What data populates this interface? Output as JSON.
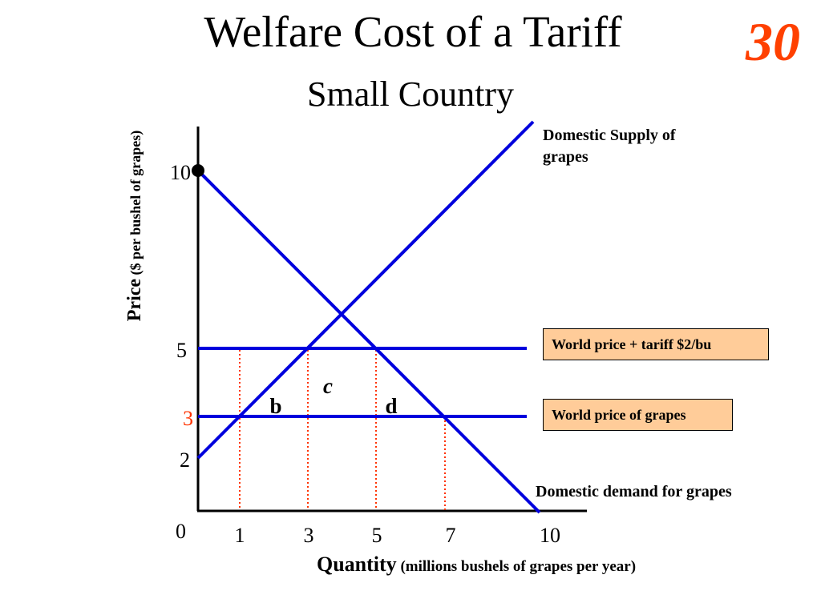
{
  "slide": {
    "title": "Welfare Cost of a Tariff",
    "subtitle": "Small Country",
    "number": "30",
    "number_color": "#ff4000"
  },
  "axes": {
    "y_label_main": "Price",
    "y_label_unit": " ($ per bushel of  grapes)",
    "x_label_main": "Quantity",
    "x_label_unit": " (millions bushels of grapes per year)",
    "y_ticks": [
      {
        "label": "10",
        "color": "#000000"
      },
      {
        "label": "5",
        "color": "#000000"
      },
      {
        "label": "3",
        "color": "#ff3300"
      },
      {
        "label": "2",
        "color": "#000000"
      },
      {
        "label": "0",
        "color": "#000000"
      }
    ],
    "x_ticks": [
      "1",
      "3",
      "5",
      "7",
      "10"
    ]
  },
  "curves": {
    "supply_label": "Domestic Supply of grapes",
    "demand_label": "Domestic demand for grapes",
    "line_color": "#0000dd",
    "dotted_color": "#ff3300"
  },
  "price_lines": {
    "tariff_box": "World price + tariff $2/bu",
    "world_box": "World price of grapes",
    "box_color": "#ffcc99"
  },
  "areas": {
    "b": "b",
    "c": "c",
    "d": "d"
  }
}
